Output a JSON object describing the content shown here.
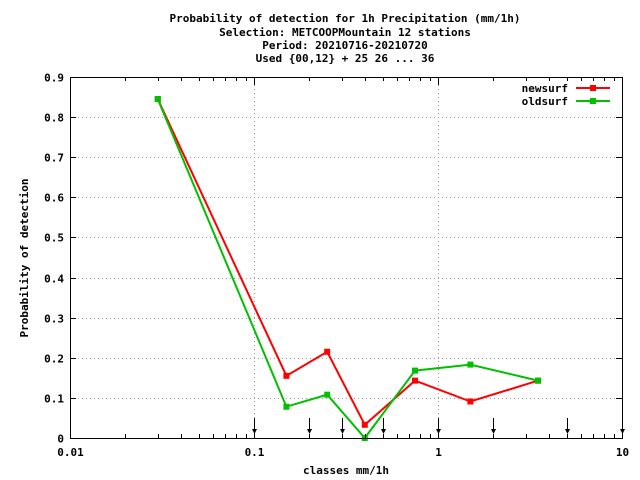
{
  "title_lines": [
    "Probability of detection  for 1h Precipitation (mm/1h)",
    "Selection: METCOOPMountain     12 stations",
    "Period: 20210716-20210720",
    "Used {00,12} + 25 26 ... 36"
  ],
  "chart_data": {
    "type": "line",
    "xlabel": "classes mm/1h",
    "ylabel": "Probability of detection",
    "xscale": "log",
    "xlim": [
      0.01,
      10
    ],
    "ylim": [
      0,
      0.9
    ],
    "x_ticks": [
      {
        "value": 0.01,
        "label": "0.01"
      },
      {
        "value": 0.1,
        "label": "0.1"
      },
      {
        "value": 1,
        "label": "1"
      },
      {
        "value": 10,
        "label": "10"
      }
    ],
    "y_ticks": [
      {
        "value": 0,
        "label": "0"
      },
      {
        "value": 0.1,
        "label": "0.1"
      },
      {
        "value": 0.2,
        "label": "0.2"
      },
      {
        "value": 0.3,
        "label": "0.3"
      },
      {
        "value": 0.4,
        "label": "0.4"
      },
      {
        "value": 0.5,
        "label": "0.5"
      },
      {
        "value": 0.6,
        "label": "0.6"
      },
      {
        "value": 0.7,
        "label": "0.7"
      },
      {
        "value": 0.8,
        "label": "0.8"
      },
      {
        "value": 0.9,
        "label": "0.9"
      }
    ],
    "grid": true,
    "legend_position": "top-right",
    "class_limits": [
      0.1,
      0.2,
      0.3,
      0.5,
      1,
      2,
      5,
      10
    ],
    "series": [
      {
        "name": "newsurf",
        "color": "#ff0000",
        "x": [
          0.03,
          0.15,
          0.25,
          0.4,
          0.75,
          1.5,
          3.5
        ],
        "y": [
          0.845,
          0.155,
          0.215,
          0.033,
          0.143,
          0.091,
          0.143
        ]
      },
      {
        "name": "oldsurf",
        "color": "#00c000",
        "x": [
          0.03,
          0.15,
          0.25,
          0.4,
          0.75,
          1.5,
          3.5
        ],
        "y": [
          0.845,
          0.078,
          0.108,
          0.0,
          0.168,
          0.183,
          0.143
        ]
      }
    ]
  }
}
